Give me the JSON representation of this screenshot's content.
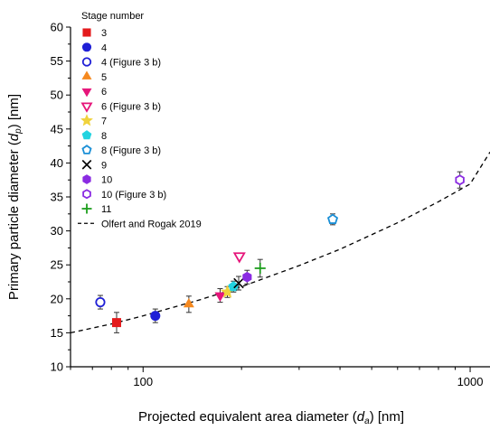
{
  "chart_data": {
    "type": "scatter",
    "xlabel": {
      "prefix": "Projected equivalent area diameter (",
      "var": "d",
      "sub": "a",
      "suffix": ") [nm]"
    },
    "ylabel": {
      "prefix": "Primary particle diameter (",
      "var": "d",
      "sub": "p",
      "suffix": ") [nm]"
    },
    "xscale": "log",
    "xlim": [
      60,
      1150
    ],
    "ylim": [
      10,
      60
    ],
    "x_ticks": [
      100,
      1000
    ],
    "y_ticks": [
      10,
      15,
      20,
      25,
      30,
      35,
      40,
      45,
      50,
      55,
      60
    ],
    "grid": false,
    "legend": {
      "title": "Stage number",
      "position": "top-left"
    },
    "series": [
      {
        "name": "3",
        "marker": "square",
        "fill": true,
        "color": "#e41a1c",
        "points": [
          {
            "x": 83,
            "y": 16.5,
            "err": 1.5
          }
        ]
      },
      {
        "name": "4",
        "marker": "circle",
        "fill": true,
        "color": "#1f1fd6",
        "points": [
          {
            "x": 109,
            "y": 17.5,
            "err": 1.0
          }
        ]
      },
      {
        "name": "4 (Figure 3 b)",
        "marker": "circle",
        "fill": false,
        "color": "#1f1fd6",
        "points": [
          {
            "x": 74,
            "y": 19.5,
            "err": 1.0
          }
        ]
      },
      {
        "name": "5",
        "marker": "triangle-up",
        "fill": true,
        "color": "#f5891f",
        "points": [
          {
            "x": 138,
            "y": 19.2,
            "err": 1.2
          }
        ]
      },
      {
        "name": "6",
        "marker": "triangle-down",
        "fill": true,
        "color": "#e6157a",
        "points": [
          {
            "x": 172,
            "y": 20.5,
            "err": 1.0
          }
        ]
      },
      {
        "name": "6 (Figure 3 b)",
        "marker": "triangle-down",
        "fill": false,
        "color": "#e6157a",
        "points": [
          {
            "x": 197,
            "y": 26.3,
            "err": 0
          }
        ]
      },
      {
        "name": "7",
        "marker": "star",
        "fill": true,
        "color": "#f0d23c",
        "points": [
          {
            "x": 181,
            "y": 21.0,
            "err": 0.8
          }
        ]
      },
      {
        "name": "8",
        "marker": "pentagon",
        "fill": true,
        "color": "#22d3e0",
        "points": [
          {
            "x": 189,
            "y": 21.8,
            "err": 0.8
          }
        ]
      },
      {
        "name": "8 (Figure 3 b)",
        "marker": "pentagon",
        "fill": false,
        "color": "#1a8fd6",
        "points": [
          {
            "x": 380,
            "y": 31.7,
            "err": 0.8
          }
        ]
      },
      {
        "name": "9",
        "marker": "x",
        "fill": false,
        "color": "#000000",
        "points": [
          {
            "x": 196,
            "y": 22.3,
            "err": 1.0
          }
        ]
      },
      {
        "name": "10",
        "marker": "hexagon",
        "fill": true,
        "color": "#8a2be2",
        "points": [
          {
            "x": 208,
            "y": 23.2,
            "err": 1.0
          }
        ]
      },
      {
        "name": "10 (Figure 3 b)",
        "marker": "hexagon",
        "fill": false,
        "color": "#8a2be2",
        "points": [
          {
            "x": 930,
            "y": 37.5,
            "err": 1.2
          }
        ]
      },
      {
        "name": "11",
        "marker": "plus",
        "fill": false,
        "color": "#1e9e1e",
        "points": [
          {
            "x": 228,
            "y": 24.5,
            "err": 1.3
          }
        ]
      }
    ],
    "fit_line": {
      "name": "Olfert and Rogak 2019",
      "style": "dashed",
      "color": "#000000",
      "x": [
        60,
        80,
        100,
        150,
        200,
        300,
        400,
        600,
        800,
        1000,
        1150
      ],
      "y": [
        15.0,
        16.3,
        17.5,
        19.9,
        21.8,
        24.9,
        27.3,
        31.2,
        34.3,
        36.9,
        41.6
      ]
    }
  }
}
